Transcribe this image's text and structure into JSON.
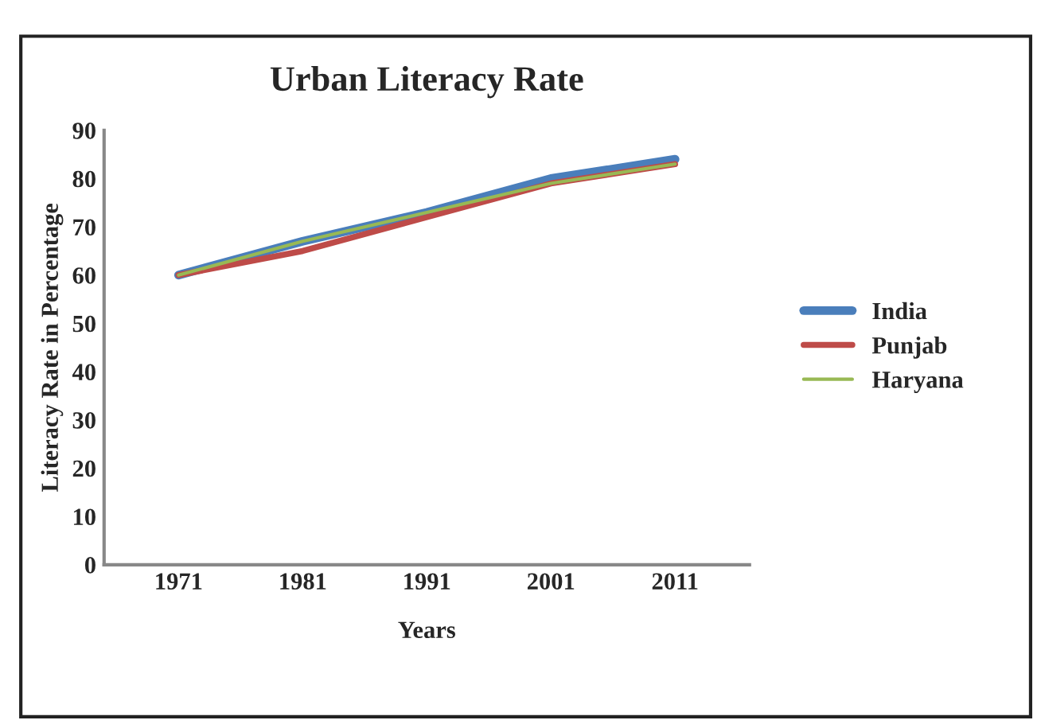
{
  "chart_data": {
    "type": "line",
    "title": "Urban Literacy Rate",
    "xlabel": "Years",
    "ylabel": "Literacy Rate in Percentage",
    "categories": [
      "1971",
      "1981",
      "1991",
      "2001",
      "2011"
    ],
    "series": [
      {
        "name": "India",
        "color": "#4a7ebb",
        "values": [
          60,
          67,
          73,
          80,
          84
        ]
      },
      {
        "name": "Punjab",
        "color": "#be4b48",
        "values": [
          60,
          65,
          72,
          79,
          83
        ]
      },
      {
        "name": "Haryana",
        "color": "#98b954",
        "values": [
          60,
          67,
          73,
          79,
          83
        ]
      }
    ],
    "ylim": [
      0,
      90
    ],
    "yticks": [
      0,
      10,
      20,
      30,
      40,
      50,
      60,
      70,
      80,
      90
    ],
    "grid": false,
    "legend": "right"
  }
}
